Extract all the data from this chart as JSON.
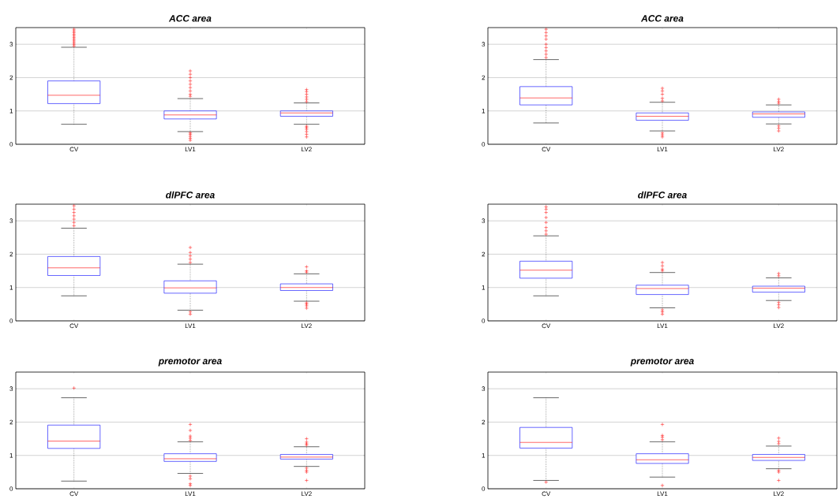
{
  "chart_data": [
    {
      "type": "box",
      "title": "ACC area",
      "categories": [
        "CV",
        "LV1",
        "LV2"
      ],
      "ylim": [
        0,
        3.5
      ],
      "yticks": [
        0,
        1,
        2,
        3
      ],
      "grid": "y",
      "marker": "cross",
      "boxes": [
        {
          "low": 0.6,
          "q1": 1.22,
          "median": 1.47,
          "q3": 1.9,
          "high": 2.91,
          "outliers": [
            2.95,
            3.0,
            3.05,
            3.1,
            3.15,
            3.2,
            3.25,
            3.3,
            3.35,
            3.4,
            3.45
          ]
        },
        {
          "low": 0.38,
          "q1": 0.76,
          "median": 0.88,
          "q3": 1.0,
          "high": 1.37,
          "outliers": [
            0.12,
            0.18,
            0.24,
            0.3,
            0.34,
            1.44,
            1.5,
            1.6,
            1.7,
            1.8,
            1.9,
            2.0,
            2.1,
            2.2
          ]
        },
        {
          "low": 0.6,
          "q1": 0.84,
          "median": 0.94,
          "q3": 1.0,
          "high": 1.24,
          "outliers": [
            0.22,
            0.3,
            0.38,
            0.45,
            0.5,
            0.54,
            1.28,
            1.35,
            1.42,
            1.5,
            1.58,
            1.64
          ]
        }
      ]
    },
    {
      "type": "box",
      "title": "ACC area",
      "categories": [
        "CV",
        "LV1",
        "LV2"
      ],
      "ylim": [
        0,
        3.5
      ],
      "yticks": [
        0,
        1,
        2,
        3
      ],
      "grid": "y",
      "marker": "cross",
      "boxes": [
        {
          "low": 0.64,
          "q1": 1.18,
          "median": 1.39,
          "q3": 1.73,
          "high": 2.54,
          "outliers": [
            2.6,
            2.7,
            2.8,
            2.9,
            3.0,
            3.15,
            3.25,
            3.35,
            3.45
          ]
        },
        {
          "low": 0.4,
          "q1": 0.72,
          "median": 0.84,
          "q3": 0.94,
          "high": 1.26,
          "outliers": [
            0.22,
            0.28,
            0.34,
            1.3,
            1.38,
            1.5,
            1.6,
            1.68
          ]
        },
        {
          "low": 0.61,
          "q1": 0.81,
          "median": 0.91,
          "q3": 0.97,
          "high": 1.18,
          "outliers": [
            0.4,
            0.48,
            0.55,
            1.23,
            1.28,
            1.35
          ]
        }
      ]
    },
    {
      "type": "box",
      "title": "dlPFC area",
      "categories": [
        "CV",
        "LV1",
        "LV2"
      ],
      "ylim": [
        0,
        3.5
      ],
      "yticks": [
        0,
        1,
        2,
        3
      ],
      "grid": "y",
      "marker": "cross",
      "boxes": [
        {
          "low": 0.75,
          "q1": 1.36,
          "median": 1.59,
          "q3": 1.93,
          "high": 2.78,
          "outliers": [
            2.85,
            2.95,
            3.05,
            3.15,
            3.25,
            3.35,
            3.45
          ]
        },
        {
          "low": 0.32,
          "q1": 0.83,
          "median": 0.99,
          "q3": 1.2,
          "high": 1.7,
          "outliers": [
            0.2,
            0.27,
            1.75,
            1.85,
            1.95,
            2.05,
            2.2
          ]
        },
        {
          "low": 0.59,
          "q1": 0.91,
          "median": 1.0,
          "q3": 1.11,
          "high": 1.41,
          "outliers": [
            0.38,
            0.45,
            0.5,
            0.54,
            1.46,
            1.5,
            1.62
          ]
        }
      ]
    },
    {
      "type": "box",
      "title": "dlPFC area",
      "categories": [
        "CV",
        "LV1",
        "LV2"
      ],
      "ylim": [
        0,
        3.5
      ],
      "yticks": [
        0,
        1,
        2,
        3
      ],
      "grid": "y",
      "marker": "cross",
      "boxes": [
        {
          "low": 0.75,
          "q1": 1.28,
          "median": 1.52,
          "q3": 1.79,
          "high": 2.55,
          "outliers": [
            2.6,
            2.7,
            2.8,
            2.95,
            3.1,
            3.25,
            3.35,
            3.42
          ]
        },
        {
          "low": 0.39,
          "q1": 0.79,
          "median": 0.97,
          "q3": 1.07,
          "high": 1.45,
          "outliers": [
            0.2,
            0.27,
            0.33,
            1.5,
            1.55,
            1.65,
            1.75
          ]
        },
        {
          "low": 0.61,
          "q1": 0.86,
          "median": 0.98,
          "q3": 1.04,
          "high": 1.29,
          "outliers": [
            0.4,
            0.48,
            0.55,
            1.35,
            1.42
          ]
        }
      ]
    },
    {
      "type": "box",
      "title": "premotor area",
      "categories": [
        "CV",
        "LV1",
        "LV2"
      ],
      "ylim": [
        0,
        3.5
      ],
      "yticks": [
        0,
        1,
        2,
        3
      ],
      "grid": "y",
      "marker": "cross",
      "boxes": [
        {
          "low": 0.23,
          "q1": 1.21,
          "median": 1.43,
          "q3": 1.91,
          "high": 2.73,
          "outliers": [
            3.02
          ]
        },
        {
          "low": 0.46,
          "q1": 0.82,
          "median": 0.9,
          "q3": 1.05,
          "high": 1.41,
          "outliers": [
            0.1,
            0.15,
            0.3,
            0.38,
            1.45,
            1.52,
            1.58,
            1.75,
            1.93
          ]
        },
        {
          "low": 0.67,
          "q1": 0.89,
          "median": 0.95,
          "q3": 1.03,
          "high": 1.26,
          "outliers": [
            0.25,
            0.5,
            0.55,
            0.62,
            1.31,
            1.35,
            1.4,
            1.5
          ]
        }
      ]
    },
    {
      "type": "box",
      "title": "premotor area",
      "categories": [
        "CV",
        "LV1",
        "LV2"
      ],
      "ylim": [
        0,
        3.5
      ],
      "yticks": [
        0,
        1,
        2,
        3
      ],
      "grid": "y",
      "marker": "cross",
      "boxes": [
        {
          "low": 0.25,
          "q1": 1.22,
          "median": 1.39,
          "q3": 1.84,
          "high": 2.73,
          "outliers": [
            0.2
          ]
        },
        {
          "low": 0.35,
          "q1": 0.76,
          "median": 0.87,
          "q3": 1.05,
          "high": 1.41,
          "outliers": [
            0.1,
            1.47,
            1.55,
            1.6,
            1.93
          ]
        },
        {
          "low": 0.6,
          "q1": 0.85,
          "median": 0.94,
          "q3": 1.03,
          "high": 1.28,
          "outliers": [
            0.25,
            0.5,
            0.55,
            1.35,
            1.42,
            1.52
          ]
        }
      ]
    }
  ]
}
